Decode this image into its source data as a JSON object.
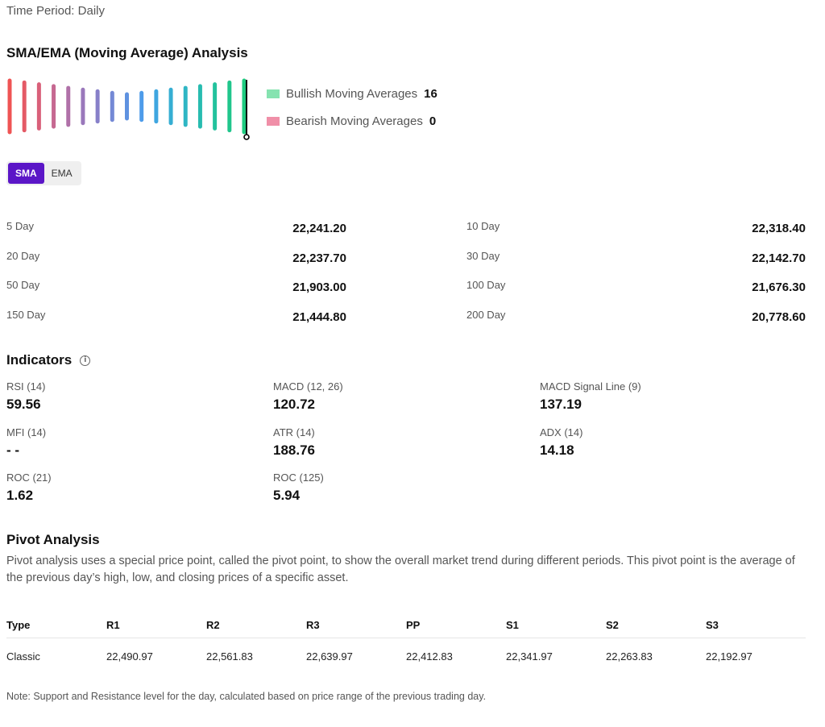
{
  "header": {
    "time_period": "Time Period: Daily"
  },
  "ma_section": {
    "title": "SMA/EMA (Moving Average) Analysis",
    "gauge": {
      "bar_colors": [
        "#ef5454",
        "#e45a66",
        "#d9607a",
        "#c66891",
        "#b071a8",
        "#9a78bb",
        "#8780c9",
        "#7489d5",
        "#5f92e0",
        "#4e9cea",
        "#3fa6e0",
        "#36aed3",
        "#2fb6c4",
        "#28bcb0",
        "#23c29d",
        "#20c68c",
        "#1ecb80"
      ],
      "needle_color": "#000000",
      "bullish_fraction": 1.0
    },
    "legend": {
      "bullish": {
        "label": "Bullish Moving Averages",
        "count": "16",
        "color": "#86e3b0"
      },
      "bearish": {
        "label": "Bearish Moving Averages",
        "count": "0",
        "color": "#f08fa8"
      }
    },
    "toggle": {
      "sma": "SMA",
      "ema": "EMA",
      "active": "SMA"
    },
    "rows": [
      {
        "left_label": "5 Day",
        "left_value": "22,241.20",
        "right_label": "10 Day",
        "right_value": "22,318.40"
      },
      {
        "left_label": "20 Day",
        "left_value": "22,237.70",
        "right_label": "30 Day",
        "right_value": "22,142.70"
      },
      {
        "left_label": "50 Day",
        "left_value": "21,903.00",
        "right_label": "100 Day",
        "right_value": "21,676.30"
      },
      {
        "left_label": "150 Day",
        "left_value": "21,444.80",
        "right_label": "200 Day",
        "right_value": "20,778.60"
      }
    ]
  },
  "indicators": {
    "title": "Indicators",
    "info_icon": "info-icon",
    "items": [
      {
        "label": "RSI (14)",
        "value": "59.56"
      },
      {
        "label": "MACD (12, 26)",
        "value": "120.72"
      },
      {
        "label": "MACD Signal Line (9)",
        "value": "137.19"
      },
      {
        "label": "MFI (14)",
        "value": "- -"
      },
      {
        "label": "ATR (14)",
        "value": "188.76"
      },
      {
        "label": "ADX (14)",
        "value": "14.18"
      },
      {
        "label": "ROC (21)",
        "value": "1.62"
      },
      {
        "label": "ROC (125)",
        "value": "5.94"
      }
    ]
  },
  "pivot": {
    "title": "Pivot Analysis",
    "description": "Pivot analysis uses a special price point, called the pivot point, to show the overall market trend during different periods. This pivot point is the average of the previous day’s high, low, and closing prices of a specific asset.",
    "headers": [
      "Type",
      "R1",
      "R2",
      "R3",
      "PP",
      "S1",
      "S2",
      "S3"
    ],
    "row": [
      "Classic",
      "22,490.97",
      "22,561.83",
      "22,639.97",
      "22,412.83",
      "22,341.97",
      "22,263.83",
      "22,192.97"
    ],
    "note": "Note: Support and Resistance level for the day, calculated based on price range of the previous trading day."
  }
}
